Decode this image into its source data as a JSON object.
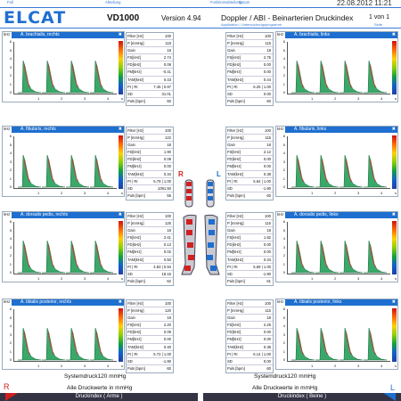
{
  "header": {
    "strip": [
      "Fall",
      "Abteilung",
      "Funktionsabteilung",
      "Datum",
      "22.08.2012  11:21"
    ],
    "logo": "ELCAT",
    "device": "VD1000",
    "version": "Version 4.94",
    "title": "Doppler / ABI - Beinarterien Druckindex",
    "subtitle": "Applikation / Untersuchungsprogramm",
    "page": "1 von 1",
    "page_sub": "Seite"
  },
  "panels": {
    "khz": "kHz",
    "y_ticks": [
      "6",
      "5",
      "4",
      "3",
      "2",
      "1",
      "0"
    ],
    "x_ticks": [
      "1",
      "2",
      "3",
      "4"
    ],
    "x_unit": "s",
    "left": [
      {
        "label": "A. brachialis, rechts"
      },
      {
        "label": "A. fibularis, rechts"
      },
      {
        "label": "A. dorsalis pedis, rechts"
      },
      {
        "label": "A. tibialis posterior, rechts"
      }
    ],
    "right": [
      {
        "label": "A. brachialis, links"
      },
      {
        "label": "A. fibularis, links"
      },
      {
        "label": "A. dorsalis pedis, links"
      },
      {
        "label": "A. tibialis posterior, links"
      }
    ]
  },
  "tables": {
    "labels": [
      "Filter [Hz]",
      "P [mmHg]",
      "Gain",
      "FS[kHz]",
      "FD[kHz]",
      "FM[kHz]",
      "TAM[kHz]",
      "PI | RI",
      "SD",
      "Puls [bpm]"
    ],
    "left": [
      [
        "100",
        "118",
        "18",
        "2.74",
        "0.09",
        "-0.41",
        "0.43",
        "7.45 | 0.97",
        "31.01",
        "60"
      ],
      [
        "100",
        "122",
        "18",
        "1.90",
        "0.08",
        "0.00",
        "0.34",
        "5.79 | 1.00",
        "1091.50",
        "55"
      ],
      [
        "100",
        "125",
        "18",
        "2.41",
        "0.13",
        "0.02",
        "0.50",
        "4.83 | 0.94",
        "18.15",
        "62"
      ],
      [
        "100",
        "120",
        "18",
        "2.20",
        "0.09",
        "0.00",
        "0.40",
        "5.72 | 1.00",
        "-1.90",
        "60"
      ]
    ],
    "right": [
      [
        "100",
        "115",
        "18",
        "2.75",
        "0.00",
        "0.00",
        "0.44",
        "6.25 | 1.00",
        "0.00",
        "60"
      ],
      [
        "100",
        "115",
        "18",
        "2.12",
        "0.00",
        "0.00",
        "0.38",
        "5.64 | 1.00",
        "-1.90",
        "60"
      ],
      [
        "100",
        "115",
        "18",
        "1.92",
        "0.00",
        "0.00",
        "0.34",
        "5.69 | 1.00",
        "-1.90",
        "61"
      ],
      [
        "100",
        "115",
        "18",
        "2.25",
        "0.00",
        "0.00",
        "0.38",
        "6.14 | 1.00",
        "0.00",
        "60"
      ]
    ]
  },
  "centre": {
    "right": "R",
    "left": "L"
  },
  "footer": {
    "system_left": "Systemdruck120 mmHg",
    "system_right": "Systemdruck120 mmHg",
    "units_left": "Alle Druckwerte in mmHg",
    "units_right": "Alle Druckwerte in mmHg",
    "R": "R",
    "L": "L",
    "arms": "Druckindex ( Arme )",
    "legs": "Druckindex ( Beine )"
  },
  "colors": {
    "accent": "#1e6fcf",
    "right_side": "#d02020",
    "waveform_fill": "#3aa86a"
  }
}
